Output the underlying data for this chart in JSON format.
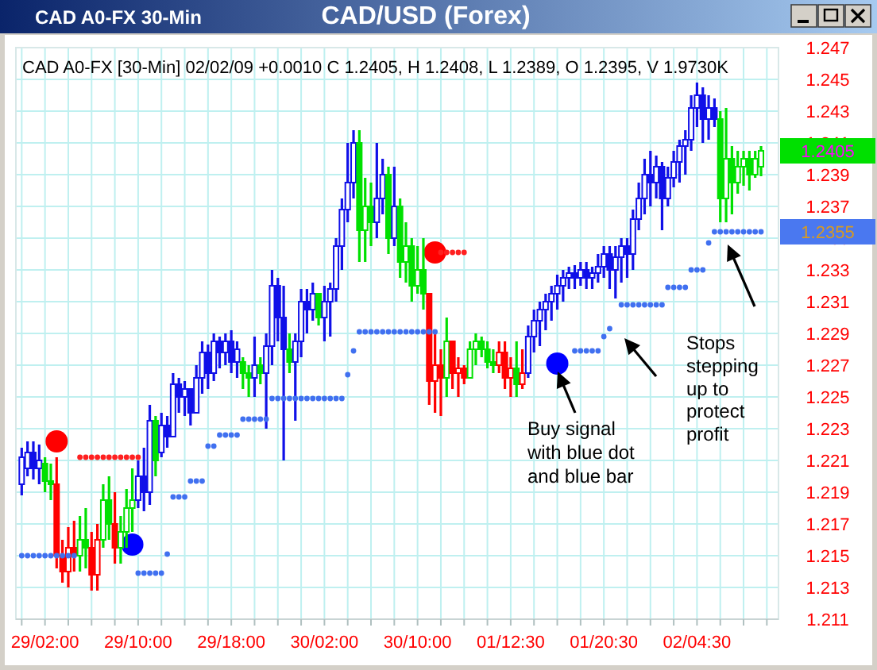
{
  "chart_data": {
    "type": "candlestick",
    "title": "CAD/USD (Forex)",
    "subtitle": "CAD A0-FX [30-Min] 02/02/09  +0.0010 C 1.2405, H 1.2408, L 1.2389, O 1.2395, V 1.9730K",
    "annotations": [
      "CAD A0-FX 30-Min",
      "Buy signal with blue dot and blue bar",
      "Stops stepping up to protect profit",
      "1.2405",
      "1.2355"
    ],
    "categories": [
      null,
      null,
      null,
      null,
      "29/02:00",
      null,
      null,
      null,
      null,
      null,
      null,
      null,
      null,
      null,
      null,
      null,
      null,
      null,
      null,
      null,
      "29/10:00",
      null,
      null,
      null,
      null,
      null,
      null,
      null,
      null,
      null,
      null,
      null,
      null,
      null,
      null,
      null,
      "29/18:00",
      null,
      null,
      null,
      null,
      null,
      null,
      null,
      null,
      null,
      null,
      null,
      null,
      null,
      null,
      null,
      "30/02:00",
      null,
      null,
      null,
      null,
      null,
      null,
      null,
      null,
      null,
      null,
      null,
      null,
      null,
      null,
      null,
      "30/10:00",
      null,
      null,
      null,
      null,
      null,
      null,
      null,
      null,
      null,
      null,
      null,
      null,
      null,
      null,
      null,
      "01/12:30",
      null,
      null,
      null,
      null,
      null,
      null,
      null,
      null,
      null,
      null,
      null,
      null,
      null,
      null,
      null,
      "01/20:30",
      null,
      null,
      null,
      null,
      null,
      null,
      null,
      null,
      null,
      null,
      null,
      null,
      null,
      null,
      null,
      "02/04:30",
      null,
      null,
      null,
      null,
      null,
      null,
      null,
      null,
      null,
      null,
      null
    ],
    "ohlc": [
      [
        1.2195,
        1.2218,
        1.2188,
        1.2212
      ],
      [
        1.2205,
        1.2222,
        1.22,
        1.2215
      ],
      [
        1.2215,
        1.2222,
        1.2198,
        1.2205
      ],
      [
        1.2205,
        1.222,
        1.2195,
        1.221
      ],
      [
        1.2208,
        1.2212,
        1.219,
        1.2197
      ],
      [
        1.2197,
        1.2208,
        1.2185,
        1.2195
      ],
      [
        1.2195,
        1.2212,
        1.2142,
        1.215
      ],
      [
        1.215,
        1.216,
        1.2133,
        1.214
      ],
      [
        1.214,
        1.2168,
        1.213,
        1.2155
      ],
      [
        1.2155,
        1.2172,
        1.214,
        1.215
      ],
      [
        1.215,
        1.2175,
        1.214,
        1.216
      ],
      [
        1.216,
        1.218,
        1.2142,
        1.2155
      ],
      [
        1.2155,
        1.2165,
        1.2128,
        1.2138
      ],
      [
        1.2138,
        1.217,
        1.2128,
        1.216
      ],
      [
        1.216,
        1.2195,
        1.2155,
        1.2185
      ],
      [
        1.2185,
        1.22,
        1.216,
        1.217
      ],
      [
        1.217,
        1.219,
        1.2145,
        1.2155
      ],
      [
        1.2155,
        1.2175,
        1.2145,
        1.2165
      ],
      [
        1.2165,
        1.2192,
        1.2155,
        1.218
      ],
      [
        1.218,
        1.2205,
        1.2165,
        1.2185
      ],
      [
        1.2185,
        1.221,
        1.218,
        1.22
      ],
      [
        1.22,
        1.2218,
        1.2178,
        1.219
      ],
      [
        1.219,
        1.2245,
        1.2182,
        1.2235
      ],
      [
        1.2235,
        1.2238,
        1.22,
        1.221
      ],
      [
        1.2215,
        1.224,
        1.2212,
        1.2232
      ],
      [
        1.2232,
        1.2238,
        1.2218,
        1.2225
      ],
      [
        1.2225,
        1.2265,
        1.2225,
        1.2258
      ],
      [
        1.2258,
        1.2262,
        1.224,
        1.225
      ],
      [
        1.225,
        1.226,
        1.2238,
        1.2255
      ],
      [
        1.2255,
        1.2255,
        1.2232,
        1.224
      ],
      [
        1.224,
        1.227,
        1.224,
        1.2262
      ],
      [
        1.2262,
        1.2285,
        1.2252,
        1.2278
      ],
      [
        1.2278,
        1.2283,
        1.2255,
        1.2265
      ],
      [
        1.2265,
        1.229,
        1.226,
        1.2285
      ],
      [
        1.2285,
        1.2288,
        1.2268,
        1.2278
      ],
      [
        1.2278,
        1.229,
        1.227,
        1.2285
      ],
      [
        1.2285,
        1.2292,
        1.2265,
        1.2272
      ],
      [
        1.2272,
        1.2285,
        1.2262,
        1.228
      ],
      [
        1.2272,
        1.2275,
        1.2255,
        1.2265
      ],
      [
        1.2265,
        1.227,
        1.225,
        1.2262
      ],
      [
        1.2262,
        1.2288,
        1.225,
        1.227
      ],
      [
        1.227,
        1.2275,
        1.2258,
        1.2265
      ],
      [
        1.2265,
        1.229,
        1.223,
        1.2282
      ],
      [
        1.2282,
        1.233,
        1.227,
        1.232
      ],
      [
        1.232,
        1.2325,
        1.2285,
        1.23
      ],
      [
        1.23,
        1.232,
        1.221,
        1.228
      ],
      [
        1.228,
        1.229,
        1.2265,
        1.2272
      ],
      [
        1.2272,
        1.229,
        1.2235,
        1.2285
      ],
      [
        1.2285,
        1.2318,
        1.2275,
        1.231
      ],
      [
        1.231,
        1.2318,
        1.229,
        1.2305
      ],
      [
        1.2305,
        1.2322,
        1.2298,
        1.2315
      ],
      [
        1.2315,
        1.2315,
        1.2295,
        1.23
      ],
      [
        1.23,
        1.232,
        1.2285,
        1.231
      ],
      [
        1.231,
        1.2322,
        1.2288,
        1.2318
      ],
      [
        1.2318,
        1.235,
        1.231,
        1.2345
      ],
      [
        1.2345,
        1.2375,
        1.233,
        1.2368
      ],
      [
        1.2368,
        1.241,
        1.236,
        1.2385
      ],
      [
        1.2385,
        1.2418,
        1.2375,
        1.241
      ],
      [
        1.241,
        1.2418,
        1.2335,
        1.2355
      ],
      [
        1.2355,
        1.2388,
        1.2335,
        1.237
      ],
      [
        1.237,
        1.2385,
        1.2345,
        1.236
      ],
      [
        1.236,
        1.241,
        1.235,
        1.2375
      ],
      [
        1.2375,
        1.24,
        1.2365,
        1.239
      ],
      [
        1.239,
        1.2395,
        1.234,
        1.235
      ],
      [
        1.235,
        1.2395,
        1.2345,
        1.237
      ],
      [
        1.237,
        1.2375,
        1.2325,
        1.2335
      ],
      [
        1.2335,
        1.236,
        1.2322,
        1.2345
      ],
      [
        1.2345,
        1.235,
        1.231,
        1.232
      ],
      [
        1.232,
        1.2345,
        1.2315,
        1.233
      ],
      [
        1.233,
        1.235,
        1.2305,
        1.2315
      ],
      [
        1.2315,
        1.2315,
        1.2245,
        1.226
      ],
      [
        1.226,
        1.229,
        1.224,
        1.227
      ],
      [
        1.227,
        1.228,
        1.2238,
        1.2262
      ],
      [
        1.2262,
        1.23,
        1.225,
        1.2285
      ],
      [
        1.2285,
        1.2285,
        1.2255,
        1.2265
      ],
      [
        1.2265,
        1.2275,
        1.225,
        1.2268
      ],
      [
        1.2268,
        1.227,
        1.2258,
        1.2262
      ],
      [
        1.2262,
        1.2285,
        1.2262,
        1.228
      ],
      [
        1.228,
        1.229,
        1.227,
        1.2285
      ],
      [
        1.2285,
        1.2288,
        1.2275,
        1.228
      ],
      [
        1.228,
        1.2285,
        1.2268,
        1.2272
      ],
      [
        1.2272,
        1.228,
        1.2265,
        1.227
      ],
      [
        1.227,
        1.2285,
        1.2265,
        1.2278
      ],
      [
        1.2278,
        1.2285,
        1.2255,
        1.2262
      ],
      [
        1.2262,
        1.2275,
        1.225,
        1.2268
      ],
      [
        1.2268,
        1.2285,
        1.225,
        1.2258
      ],
      [
        1.2258,
        1.228,
        1.2255,
        1.2265
      ],
      [
        1.2265,
        1.2295,
        1.2262,
        1.2288
      ],
      [
        1.2288,
        1.2305,
        1.2278,
        1.2298
      ],
      [
        1.2298,
        1.231,
        1.2282,
        1.2305
      ],
      [
        1.2305,
        1.2315,
        1.2292,
        1.231
      ],
      [
        1.231,
        1.232,
        1.2298,
        1.2315
      ],
      [
        1.2315,
        1.2327,
        1.2305,
        1.232
      ],
      [
        1.232,
        1.233,
        1.231,
        1.2325
      ],
      [
        1.2325,
        1.2332,
        1.2318,
        1.2328
      ],
      [
        1.2328,
        1.2333,
        1.2318,
        1.2325
      ],
      [
        1.2325,
        1.2335,
        1.232,
        1.233
      ],
      [
        1.233,
        1.2335,
        1.2318,
        1.2325
      ],
      [
        1.2325,
        1.2332,
        1.2318,
        1.2328
      ],
      [
        1.2328,
        1.234,
        1.2322,
        1.2332
      ],
      [
        1.2332,
        1.2345,
        1.2325,
        1.234
      ],
      [
        1.234,
        1.2345,
        1.2318,
        1.233
      ],
      [
        1.233,
        1.2345,
        1.2312,
        1.2338
      ],
      [
        1.2338,
        1.235,
        1.2322,
        1.2345
      ],
      [
        1.2345,
        1.235,
        1.2325,
        1.234
      ],
      [
        1.234,
        1.2368,
        1.233,
        1.2362
      ],
      [
        1.2362,
        1.2385,
        1.2355,
        1.2375
      ],
      [
        1.2375,
        1.24,
        1.2365,
        1.239
      ],
      [
        1.239,
        1.2405,
        1.237,
        1.2385
      ],
      [
        1.2385,
        1.2402,
        1.2375,
        1.2395
      ],
      [
        1.2395,
        1.2398,
        1.2355,
        1.2375
      ],
      [
        1.2375,
        1.2395,
        1.237,
        1.2388
      ],
      [
        1.2388,
        1.2405,
        1.2382,
        1.2398
      ],
      [
        1.2398,
        1.2412,
        1.2385,
        1.2408
      ],
      [
        1.2408,
        1.2418,
        1.239,
        1.2412
      ],
      [
        1.2412,
        1.244,
        1.2405,
        1.2432
      ],
      [
        1.2432,
        1.2448,
        1.242,
        1.244
      ],
      [
        1.244,
        1.2445,
        1.241,
        1.2425
      ],
      [
        1.2425,
        1.244,
        1.2412,
        1.2432
      ],
      [
        1.2432,
        1.2438,
        1.242,
        1.2425
      ],
      [
        1.2425,
        1.243,
        1.236,
        1.2375
      ],
      [
        1.2375,
        1.2432,
        1.236,
        1.24
      ],
      [
        1.24,
        1.2408,
        1.2365,
        1.2385
      ],
      [
        1.2385,
        1.2405,
        1.2378,
        1.2395
      ],
      [
        1.2395,
        1.2405,
        1.2383,
        1.24
      ],
      [
        1.24,
        1.2405,
        1.238,
        1.239
      ],
      [
        1.239,
        1.2405,
        1.2388,
        1.24
      ],
      [
        1.2395,
        1.2408,
        1.2389,
        1.2405
      ]
    ],
    "colors": [
      "#1010e8",
      "#1010e8",
      "#1010e8",
      "#1010e8",
      "#00e000",
      "#00e000",
      "#ff0000",
      "#ff0000",
      "#ff0000",
      "#ff0000",
      "#00e000",
      "#00e000",
      "#ff0000",
      "#ff0000",
      "#00e000",
      "#00e000",
      "#ff0000",
      "#00e000",
      "#00e000",
      "#00e000",
      "#1010e8",
      "#1010e8",
      "#1010e8",
      "#00e000",
      "#1010e8",
      "#1010e8",
      "#1010e8",
      "#1010e8",
      "#1010e8",
      "#1010e8",
      "#1010e8",
      "#1010e8",
      "#1010e8",
      "#1010e8",
      "#1010e8",
      "#1010e8",
      "#1010e8",
      "#1010e8",
      "#00e000",
      "#00e000",
      "#1010e8",
      "#00e000",
      "#1010e8",
      "#1010e8",
      "#1010e8",
      "#1010e8",
      "#00e000",
      "#1010e8",
      "#1010e8",
      "#1010e8",
      "#1010e8",
      "#00e000",
      "#1010e8",
      "#1010e8",
      "#1010e8",
      "#1010e8",
      "#1010e8",
      "#1010e8",
      "#00e000",
      "#00e000",
      "#00e000",
      "#1010e8",
      "#1010e8",
      "#00e000",
      "#1010e8",
      "#00e000",
      "#00e000",
      "#00e000",
      "#00e000",
      "#00e000",
      "#ff0000",
      "#ff0000",
      "#ff0000",
      "#00e000",
      "#ff0000",
      "#ff0000",
      "#ff0000",
      "#00e000",
      "#00e000",
      "#00e000",
      "#00e000",
      "#00e000",
      "#ff0000",
      "#ff0000",
      "#ff0000",
      "#00e000",
      "#ff0000",
      "#1010e8",
      "#1010e8",
      "#1010e8",
      "#1010e8",
      "#1010e8",
      "#1010e8",
      "#1010e8",
      "#1010e8",
      "#1010e8",
      "#1010e8",
      "#1010e8",
      "#1010e8",
      "#1010e8",
      "#1010e8",
      "#1010e8",
      "#1010e8",
      "#1010e8",
      "#1010e8",
      "#1010e8",
      "#1010e8",
      "#1010e8",
      "#1010e8",
      "#1010e8",
      "#1010e8",
      "#1010e8",
      "#1010e8",
      "#1010e8",
      "#1010e8",
      "#1010e8",
      "#1010e8",
      "#1010e8",
      "#1010e8",
      "#1010e8",
      "#00e000",
      "#00e000",
      "#00e000",
      "#00e000",
      "#00e000",
      "#00e000",
      "#00e000",
      "#00e000"
    ],
    "series": [
      {
        "type": "scatter",
        "color": "#4070f0",
        "marker": "circle",
        "values": [
          1.215,
          1.215,
          1.215,
          1.215,
          1.215,
          1.215,
          1.215,
          1.215,
          1.215,
          1.215,
          null,
          null,
          null,
          null,
          null,
          null,
          null,
          null,
          null,
          null,
          1.2139,
          1.2139,
          1.2139,
          1.2139,
          1.2139,
          1.2151,
          1.2187,
          1.2187,
          1.2187,
          1.2197,
          1.2197,
          1.2197,
          1.2219,
          1.2219,
          1.2226,
          1.2226,
          1.2226,
          1.2226,
          1.2236,
          1.2236,
          1.2236,
          1.2236,
          1.2236,
          1.2249,
          1.2249,
          1.2249,
          1.2249,
          1.2249,
          1.2249,
          1.2249,
          1.2249,
          1.2249,
          1.2249,
          1.2249,
          1.2249,
          1.2249,
          1.2264,
          1.2279,
          1.2291,
          1.2291,
          1.2291,
          1.2291,
          1.2291,
          1.2291,
          1.2291,
          1.2291,
          1.2291,
          1.2291,
          1.2291,
          1.2291,
          1.2291,
          1.2291,
          null,
          null,
          null,
          null,
          null,
          null,
          null,
          null,
          null,
          null,
          null,
          null,
          null,
          null,
          null,
          null,
          null,
          null,
          null,
          null,
          null,
          null,
          null,
          1.2279,
          1.2279,
          1.2279,
          1.2279,
          1.2279,
          1.2288,
          1.2293,
          null,
          1.2308,
          1.2308,
          1.2308,
          1.2308,
          1.2308,
          1.2308,
          1.2308,
          1.2308,
          1.2319,
          1.2319,
          1.2319,
          1.2319,
          1.233,
          1.233,
          1.233,
          1.2347,
          1.2354,
          1.2354,
          1.2354,
          1.2354,
          1.2354,
          1.2354,
          1.2354,
          1.2354,
          1.2354
        ]
      },
      {
        "type": "scatter",
        "color": "#ff2020",
        "marker": "circle",
        "values": [
          null,
          null,
          null,
          null,
          null,
          null,
          null,
          null,
          null,
          null,
          1.2212,
          1.2212,
          1.2212,
          1.2212,
          1.2212,
          1.2212,
          1.2212,
          1.2212,
          1.2212,
          1.2212,
          1.2212,
          null,
          null,
          null,
          null,
          null,
          null,
          null,
          null,
          null,
          null,
          null,
          null,
          null,
          null,
          null,
          null,
          null,
          null,
          null,
          null,
          null,
          null,
          null,
          null,
          null,
          null,
          null,
          null,
          null,
          null,
          null,
          null,
          null,
          null,
          null,
          null,
          null,
          null,
          null,
          null,
          null,
          null,
          null,
          null,
          null,
          null,
          null,
          null,
          null,
          null,
          null,
          1.2341,
          1.2341,
          1.2341,
          1.2341,
          1.2341,
          null,
          null,
          null,
          null,
          null,
          null,
          null,
          null,
          null,
          null,
          null,
          null,
          null,
          null,
          null,
          null,
          null,
          null,
          null,
          null,
          null,
          null,
          null,
          null,
          null,
          null,
          null,
          null,
          null,
          null,
          null,
          null,
          null,
          null,
          null,
          null,
          null,
          null,
          null,
          null,
          null,
          null,
          null,
          null,
          null,
          null,
          null,
          null,
          null,
          null,
          null
        ]
      },
      {
        "type": "bubble",
        "color": "#ff0000",
        "values": [
          null,
          null,
          null,
          null,
          null,
          null,
          1.2222,
          null,
          null,
          null,
          null,
          null,
          null,
          null,
          null,
          null,
          null,
          null,
          null,
          null,
          null,
          null,
          null,
          null,
          null,
          null,
          null,
          null,
          null,
          null,
          null,
          null,
          null,
          null,
          null,
          null,
          null,
          null,
          null,
          null,
          null,
          null,
          null,
          null,
          null,
          null,
          null,
          null,
          null,
          null,
          null,
          null,
          null,
          null,
          null,
          null,
          null,
          null,
          null,
          null,
          null,
          null,
          null,
          null,
          null,
          null,
          null,
          null,
          null,
          null,
          null,
          1.2341,
          null,
          null,
          null,
          null,
          null,
          null,
          null,
          null,
          null,
          null,
          null,
          null,
          null,
          null,
          null,
          null,
          null,
          null,
          null,
          null,
          null,
          null,
          null,
          null,
          null,
          null,
          null,
          null,
          null,
          null,
          null,
          null,
          null,
          null,
          null,
          null,
          null,
          null,
          null,
          null,
          null,
          null,
          null,
          null,
          null,
          null,
          null,
          null,
          null,
          null,
          null,
          null,
          null,
          null,
          null,
          null
        ],
        "sizes": [
          null,
          null,
          null,
          null,
          null,
          null,
          1,
          null,
          null,
          null,
          null,
          null,
          null,
          null,
          null,
          null,
          null,
          null,
          null,
          null,
          null,
          null,
          null,
          null,
          null,
          null,
          null,
          null,
          null,
          null,
          null,
          null,
          null,
          null,
          null,
          null,
          null,
          null,
          null,
          null,
          null,
          null,
          null,
          null,
          null,
          null,
          null,
          null,
          null,
          null,
          null,
          null,
          null,
          null,
          null,
          null,
          null,
          null,
          null,
          null,
          null,
          null,
          null,
          null,
          null,
          null,
          null,
          null,
          null,
          null,
          null,
          1,
          null,
          null,
          null,
          null,
          null,
          null,
          null,
          null,
          null,
          null,
          null,
          null,
          null,
          null,
          null,
          null,
          null,
          null,
          null,
          null,
          null,
          null,
          null,
          null,
          null,
          null,
          null,
          null,
          null,
          null,
          null,
          null,
          null,
          null,
          null,
          null,
          null,
          null,
          null,
          null,
          null,
          null,
          null,
          null,
          null,
          null,
          null,
          null,
          null,
          null,
          null,
          null,
          null,
          null,
          null,
          null
        ]
      },
      {
        "type": "bubble",
        "color": "#0000ff",
        "values": [
          null,
          null,
          null,
          null,
          null,
          null,
          null,
          null,
          null,
          null,
          null,
          null,
          null,
          null,
          null,
          null,
          null,
          null,
          null,
          1.2157,
          null,
          null,
          null,
          null,
          null,
          null,
          null,
          null,
          null,
          null,
          null,
          null,
          null,
          null,
          null,
          null,
          null,
          null,
          null,
          null,
          null,
          null,
          null,
          null,
          null,
          null,
          null,
          null,
          null,
          null,
          null,
          null,
          null,
          null,
          null,
          null,
          null,
          null,
          null,
          null,
          null,
          null,
          null,
          null,
          null,
          null,
          null,
          null,
          null,
          null,
          null,
          null,
          null,
          null,
          null,
          null,
          null,
          null,
          null,
          null,
          null,
          null,
          null,
          null,
          null,
          null,
          null,
          null,
          null,
          null,
          null,
          null,
          1.2271,
          null,
          null,
          null,
          null,
          null,
          null,
          null,
          null,
          null,
          null,
          null,
          null,
          null,
          null,
          null,
          null,
          null,
          null,
          null,
          null,
          null,
          null,
          null,
          null,
          null,
          null,
          null,
          null,
          null,
          null,
          null,
          null,
          null,
          null,
          null
        ],
        "sizes": [
          null,
          null,
          null,
          null,
          null,
          null,
          null,
          null,
          null,
          null,
          null,
          null,
          null,
          null,
          null,
          null,
          null,
          null,
          null,
          1,
          null,
          null,
          null,
          null,
          null,
          null,
          null,
          null,
          null,
          null,
          null,
          null,
          null,
          null,
          null,
          null,
          null,
          null,
          null,
          null,
          null,
          null,
          null,
          null,
          null,
          null,
          null,
          null,
          null,
          null,
          null,
          null,
          null,
          null,
          null,
          null,
          null,
          null,
          null,
          null,
          null,
          null,
          null,
          null,
          null,
          null,
          null,
          null,
          null,
          null,
          null,
          null,
          null,
          null,
          null,
          null,
          null,
          null,
          null,
          null,
          null,
          null,
          null,
          null,
          null,
          null,
          null,
          null,
          null,
          null,
          null,
          null,
          1,
          null,
          null,
          null,
          null,
          null,
          null,
          null,
          null,
          null,
          null,
          null,
          null,
          null,
          null,
          null,
          null,
          null,
          null,
          null,
          null,
          null,
          null,
          null,
          null,
          null,
          null,
          null,
          null,
          null,
          null,
          null,
          null,
          null,
          null,
          null
        ]
      }
    ],
    "ylim": [
      1.211,
      1.247
    ],
    "yticks": [
      1.211,
      1.213,
      1.215,
      1.217,
      1.219,
      1.221,
      1.223,
      1.225,
      1.227,
      1.229,
      1.231,
      1.233,
      1.235,
      1.237,
      1.239,
      1.241,
      1.243,
      1.245,
      1.247
    ],
    "grid": true
  }
}
